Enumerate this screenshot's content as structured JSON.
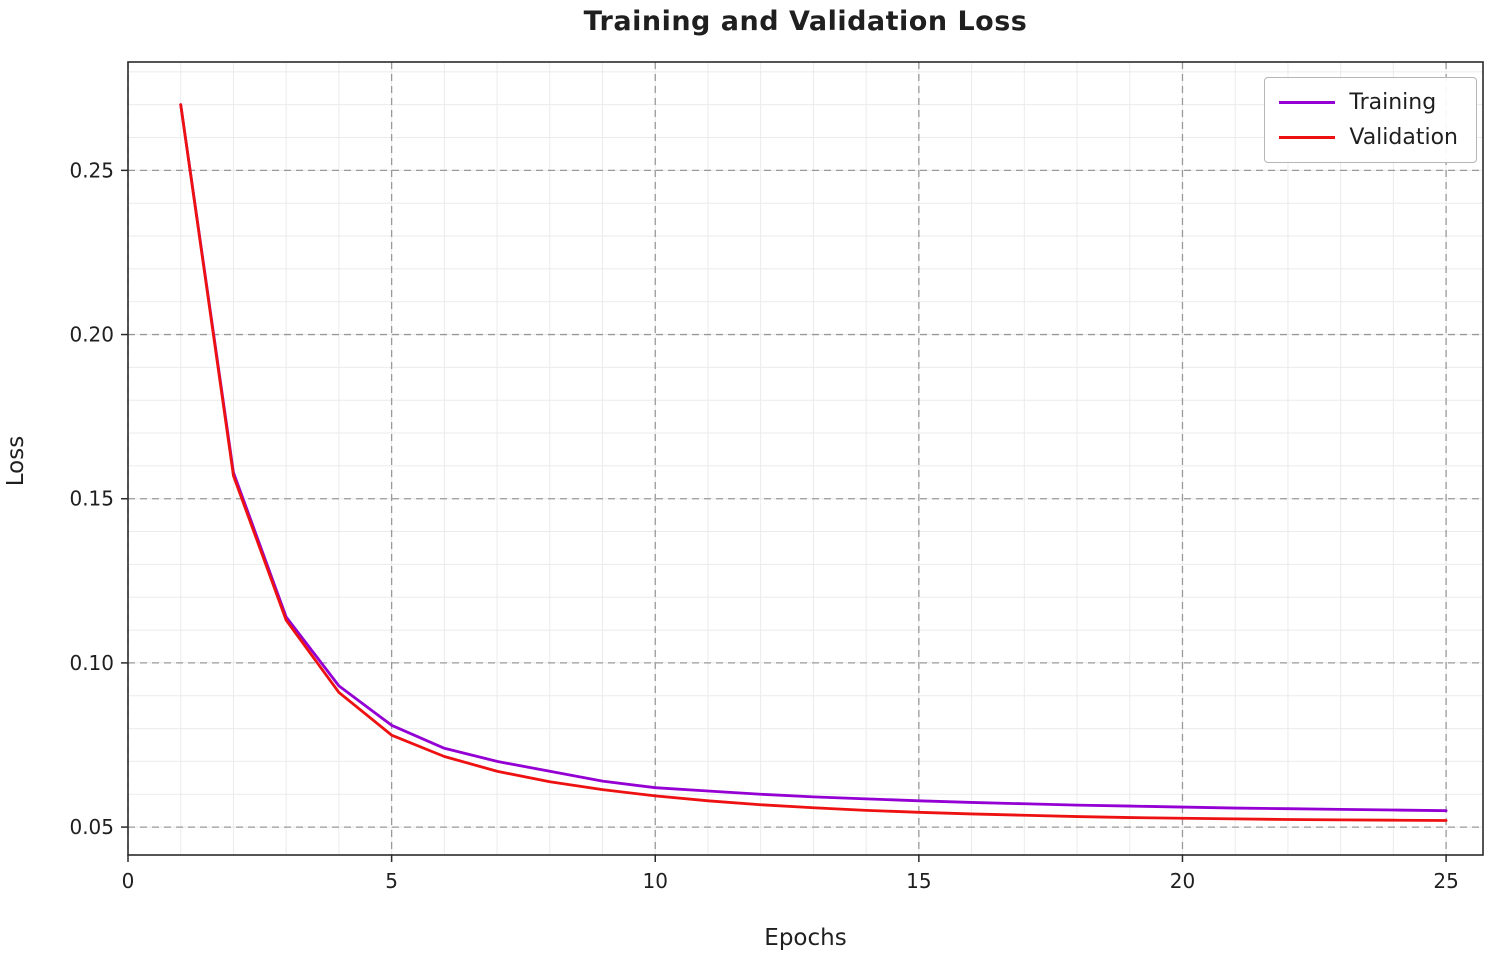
{
  "chart_data": {
    "type": "line",
    "title": "Training and Validation Loss",
    "xlabel": "Epochs",
    "ylabel": "Loss",
    "xlim": [
      0,
      25.7
    ],
    "ylim": [
      0.0415,
      0.283
    ],
    "xticks": [
      0,
      5,
      10,
      15,
      20,
      25
    ],
    "yticks": [
      0.05,
      0.1,
      0.15,
      0.2,
      0.25
    ],
    "grid": true,
    "legend_position": "upper right",
    "x": [
      1,
      2,
      3,
      4,
      5,
      6,
      7,
      8,
      9,
      10,
      11,
      12,
      13,
      14,
      15,
      16,
      17,
      18,
      19,
      20,
      21,
      22,
      23,
      24,
      25
    ],
    "series": [
      {
        "name": "Training",
        "color": "#9400d3",
        "values": [
          0.27,
          0.158,
          0.114,
          0.093,
          0.081,
          0.074,
          0.07,
          0.067,
          0.064,
          0.062,
          0.061,
          0.06,
          0.0592,
          0.0586,
          0.058,
          0.0575,
          0.0571,
          0.0567,
          0.0564,
          0.0561,
          0.0558,
          0.0556,
          0.0554,
          0.0552,
          0.055
        ]
      },
      {
        "name": "Validation",
        "color": "#ee1111",
        "values": [
          0.27,
          0.157,
          0.113,
          0.091,
          0.078,
          0.0715,
          0.067,
          0.0638,
          0.0614,
          0.0595,
          0.058,
          0.0568,
          0.0559,
          0.0551,
          0.0545,
          0.054,
          0.0536,
          0.0532,
          0.0529,
          0.0527,
          0.0525,
          0.0523,
          0.0522,
          0.0521,
          0.052
        ]
      }
    ],
    "colors": {
      "major_grid": "#999999",
      "minor_grid": "#ebebeb",
      "spine": "#2b2b2b",
      "tick_label": "#1f1f1f"
    }
  }
}
